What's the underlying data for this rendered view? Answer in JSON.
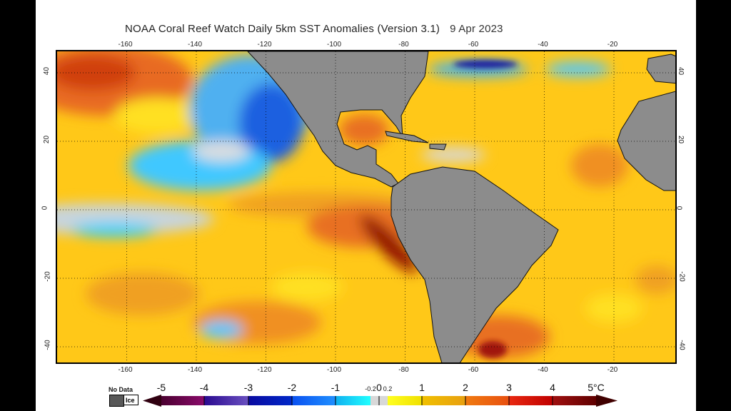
{
  "title": "NOAA Coral Reef Watch Daily 5km SST Anomalies (Version 3.1)",
  "date": "9 Apr 2023",
  "map": {
    "lon_range": [
      -180,
      0
    ],
    "lat_range": [
      -45,
      45
    ],
    "lon_ticks": [
      "-160",
      "-140",
      "-120",
      "-100",
      "-80",
      "-60",
      "-40",
      "-20"
    ],
    "lat_ticks": [
      "40",
      "20",
      "0",
      "-20",
      "-40"
    ],
    "land_color": "#8c8c8c",
    "grid": "dotted"
  },
  "legend": {
    "no_data_label": "No Data",
    "ice_label": "Ice",
    "ticks": [
      "-5",
      "-4",
      "-3",
      "-2",
      "-1",
      "-0.2",
      "0",
      "0.2",
      "1",
      "2",
      "3",
      "4",
      "5°C"
    ],
    "colors": [
      "#4a0030",
      "#3a10a0",
      "#0a14b0",
      "#1060f8",
      "#20d8ff",
      "#d8d8d8",
      "#f8f020",
      "#f0b818",
      "#f07010",
      "#e02010",
      "#800808"
    ]
  }
}
